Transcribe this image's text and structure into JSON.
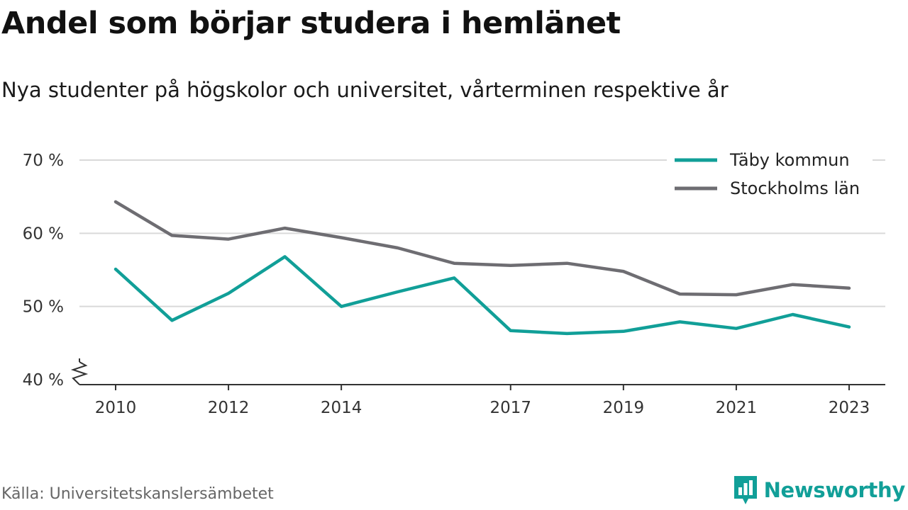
{
  "header": {
    "title": "Andel som börjar studera i hemlänet",
    "subtitle": "Nya studenter på högskolor och universitet, vårterminen respektive år"
  },
  "footer": {
    "source": "Källa: Universitetskanslersämbetet",
    "brand": "Newsworthy"
  },
  "colors": {
    "accent": "#119f98",
    "secondary": "#6e6d72",
    "grid": "#d9d9d9",
    "axis": "#333333"
  },
  "icons": {
    "brand_logo": "newsworthy-bar-chart-logo-icon",
    "axis_break": "zigzag-axis-break-icon"
  },
  "chart_data": {
    "type": "line",
    "x": [
      2010,
      2011,
      2012,
      2013,
      2014,
      2015,
      2016,
      2017,
      2018,
      2019,
      2020,
      2021,
      2022,
      2023
    ],
    "x_tick_labels": [
      "2010",
      "2012",
      "2014",
      "2017",
      "2019",
      "2021",
      "2023"
    ],
    "y_tick_labels": [
      "40 %",
      "50 %",
      "60 %",
      "70 %"
    ],
    "y_ticks": [
      40,
      50,
      60,
      70
    ],
    "ylim": [
      40,
      70
    ],
    "xlim": [
      2010,
      2023
    ],
    "axis_break": true,
    "grid": true,
    "legend_position": "top-right",
    "series": [
      {
        "name": "Täby kommun",
        "color": "#119f98",
        "values": [
          55.1,
          48.1,
          51.8,
          56.8,
          50.0,
          52.0,
          53.9,
          46.7,
          46.3,
          46.6,
          47.9,
          47.0,
          48.9,
          47.2
        ]
      },
      {
        "name": "Stockholms län",
        "color": "#6e6d72",
        "values": [
          64.3,
          59.7,
          59.2,
          60.7,
          59.4,
          58.0,
          55.9,
          55.6,
          55.9,
          54.8,
          51.7,
          51.6,
          53.0,
          52.5
        ]
      }
    ]
  }
}
